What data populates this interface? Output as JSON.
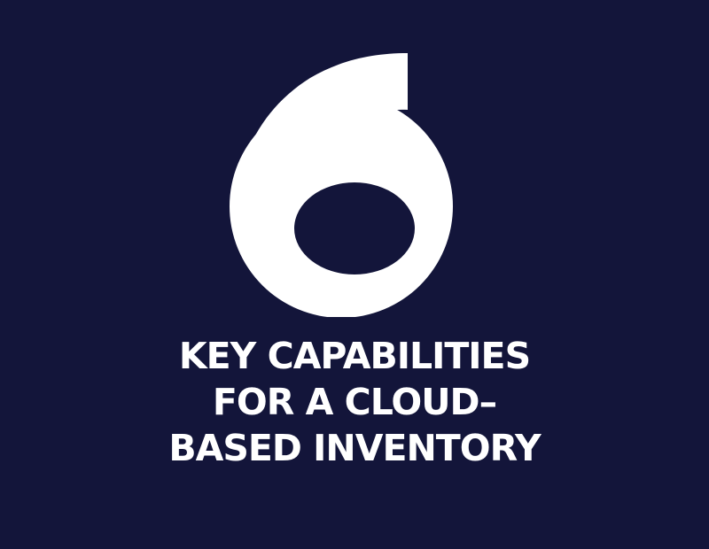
{
  "big_number": "6",
  "headline_lines": [
    "KEY CAPABILITIES",
    "FOR A CLOUD–",
    "BASED INVENTORY"
  ],
  "colors": {
    "background": "#13153a",
    "text": "#ffffff"
  }
}
